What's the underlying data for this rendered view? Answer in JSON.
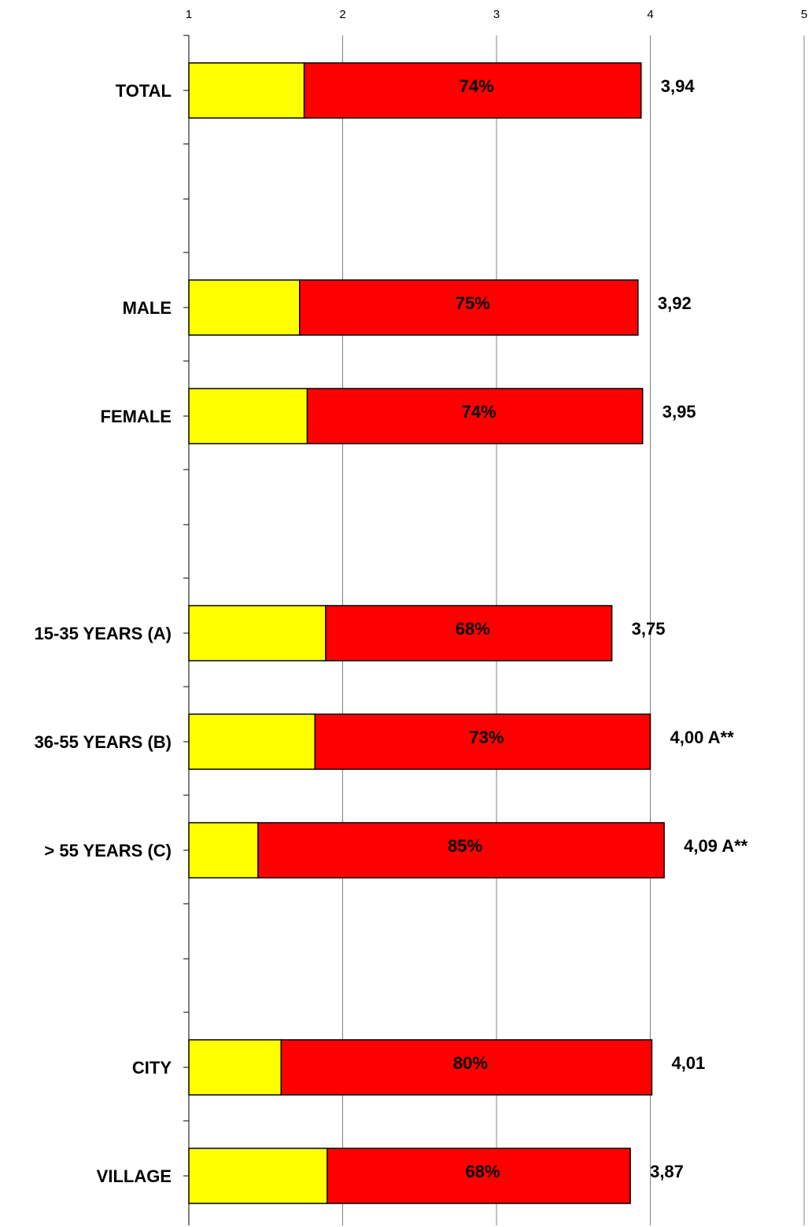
{
  "chart_data": {
    "type": "bar",
    "orientation": "horizontal",
    "stacked": true,
    "xlim": [
      1,
      5
    ],
    "x_ticks": [
      "1",
      "2",
      "3",
      "4",
      "5"
    ],
    "grid": true,
    "colors": {
      "segment1": "#ffff00",
      "segment2": "#ff0000",
      "grid": "#808080"
    },
    "rows": [
      {
        "label": "TOTAL",
        "start": 1,
        "split": 1.75,
        "end": 3.94,
        "pct_label": "74%",
        "value_label": "3,94"
      },
      {
        "label": "",
        "empty": true
      },
      {
        "label": "MALE",
        "start": 1,
        "split": 1.72,
        "end": 3.92,
        "pct_label": "75%",
        "value_label": "3,92"
      },
      {
        "label": "FEMALE",
        "start": 1,
        "split": 1.77,
        "end": 3.95,
        "pct_label": "74%",
        "value_label": "3,95"
      },
      {
        "label": "",
        "empty": true
      },
      {
        "label": "15-35 YEARS (A)",
        "start": 1,
        "split": 1.89,
        "end": 3.75,
        "pct_label": "68%",
        "value_label": "3,75"
      },
      {
        "label": "36-55 YEARS (B)",
        "start": 1,
        "split": 1.82,
        "end": 4.0,
        "pct_label": "73%",
        "value_label": "4,00 A**"
      },
      {
        "label": "> 55 YEARS (C)",
        "start": 1,
        "split": 1.45,
        "end": 4.09,
        "pct_label": "85%",
        "value_label": "4,09 A**"
      },
      {
        "label": "",
        "empty": true
      },
      {
        "label": "CITY",
        "start": 1,
        "split": 1.6,
        "end": 4.01,
        "pct_label": "80%",
        "value_label": "4,01"
      },
      {
        "label": "VILLAGE",
        "start": 1,
        "split": 1.9,
        "end": 3.87,
        "pct_label": "68%",
        "value_label": "3,87"
      }
    ]
  }
}
